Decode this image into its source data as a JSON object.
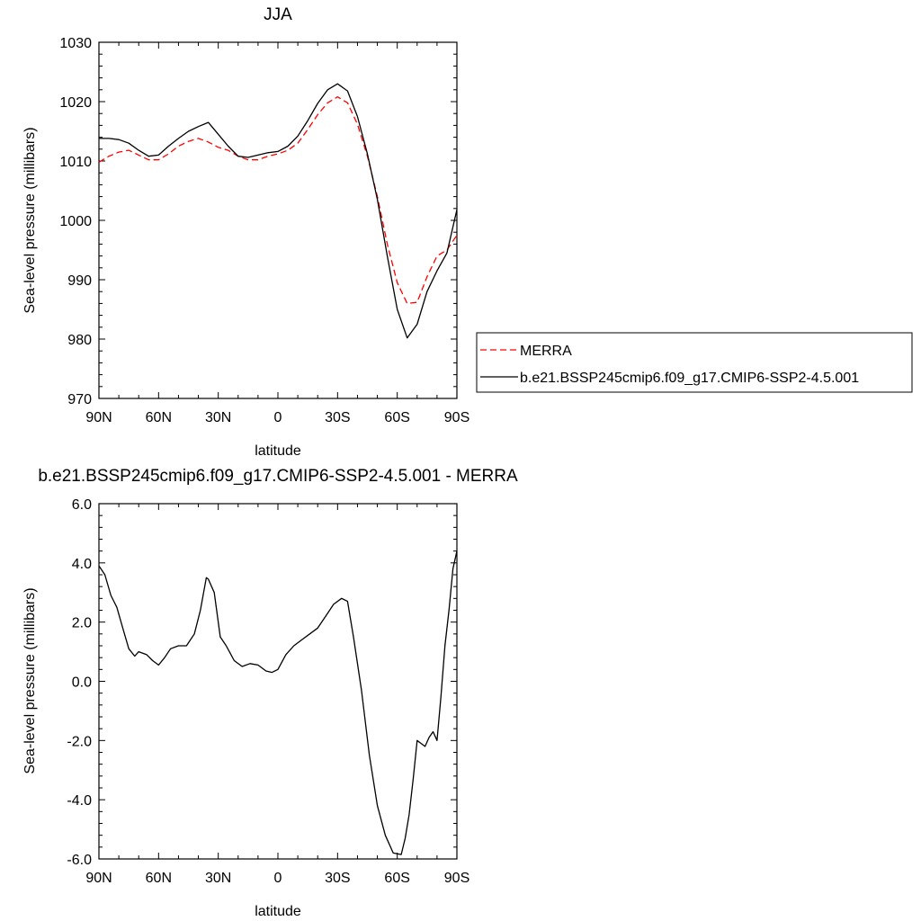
{
  "chart_data": [
    {
      "type": "line",
      "title": "JJA",
      "xlabel": "latitude",
      "ylabel": "Sea-level pressure (millibars)",
      "x_tick_labels": [
        "90N",
        "60N",
        "30N",
        "0",
        "30S",
        "60S",
        "90S"
      ],
      "x_tick_values": [
        90,
        60,
        30,
        0,
        -30,
        -60,
        -90
      ],
      "xlim": [
        90,
        -90
      ],
      "y_tick_labels": [
        "970",
        "980",
        "990",
        "1000",
        "1010",
        "1020",
        "1030"
      ],
      "y_tick_values": [
        970,
        980,
        990,
        1000,
        1010,
        1020,
        1030
      ],
      "ylim": [
        970,
        1030
      ],
      "legend_position": "right",
      "series": [
        {
          "name": "MERRA",
          "color": "#ff0000",
          "dash": "dashed",
          "x": [
            90,
            85,
            80,
            75,
            70,
            65,
            60,
            55,
            50,
            45,
            40,
            35,
            30,
            25,
            20,
            15,
            10,
            5,
            0,
            -5,
            -10,
            -15,
            -20,
            -25,
            -30,
            -35,
            -40,
            -45,
            -50,
            -55,
            -60,
            -65,
            -70,
            -75,
            -80,
            -85,
            -90
          ],
          "y": [
            1009.8,
            1010.8,
            1011.5,
            1011.8,
            1011.0,
            1010.2,
            1010.2,
            1011.2,
            1012.5,
            1013.3,
            1013.8,
            1013.2,
            1012.3,
            1011.8,
            1010.8,
            1010.2,
            1010.2,
            1010.8,
            1011.2,
            1011.8,
            1013.0,
            1015.3,
            1017.8,
            1019.8,
            1020.8,
            1019.8,
            1016.2,
            1010.8,
            1004.0,
            996.0,
            989.5,
            986.0,
            986.2,
            990.5,
            994.0,
            995.0,
            997.5
          ]
        },
        {
          "name": "b.e21.BSSP245cmip6.f09_g17.CMIP6-SSP2-4.5.001",
          "color": "#000000",
          "dash": "solid",
          "x": [
            90,
            85,
            80,
            75,
            70,
            65,
            60,
            55,
            50,
            45,
            40,
            35,
            30,
            25,
            20,
            15,
            10,
            5,
            0,
            -5,
            -10,
            -15,
            -20,
            -25,
            -30,
            -35,
            -40,
            -45,
            -50,
            -55,
            -60,
            -65,
            -70,
            -75,
            -80,
            -85,
            -90
          ],
          "y": [
            1013.8,
            1013.8,
            1013.6,
            1013.0,
            1011.8,
            1010.8,
            1011.0,
            1012.5,
            1013.8,
            1015.0,
            1015.8,
            1016.5,
            1014.5,
            1012.5,
            1010.8,
            1010.6,
            1011.0,
            1011.4,
            1011.6,
            1012.5,
            1014.2,
            1016.8,
            1019.7,
            1022.0,
            1023.0,
            1021.8,
            1017.5,
            1011.2,
            1003.5,
            994.0,
            985.0,
            980.2,
            982.5,
            988.0,
            991.5,
            994.5,
            1001.8
          ]
        }
      ]
    },
    {
      "type": "line",
      "title": "b.e21.BSSP245cmip6.f09_g17.CMIP6-SSP2-4.5.001 - MERRA",
      "xlabel": "latitude",
      "ylabel": "Sea-level pressure (millibars)",
      "x_tick_labels": [
        "90N",
        "60N",
        "30N",
        "0",
        "30S",
        "60S",
        "90S"
      ],
      "x_tick_values": [
        90,
        60,
        30,
        0,
        -30,
        -60,
        -90
      ],
      "xlim": [
        90,
        -90
      ],
      "y_tick_labels": [
        "-6.0",
        "-4.0",
        "-2.0",
        "0.0",
        "2.0",
        "4.0",
        "6.0"
      ],
      "y_tick_values": [
        -6,
        -4,
        -2,
        0,
        2,
        4,
        6
      ],
      "ylim": [
        -6,
        6
      ],
      "series": [
        {
          "color": "#000000",
          "dash": "solid",
          "x": [
            90,
            87,
            84,
            81,
            78,
            75,
            72,
            70,
            66,
            63,
            60,
            57,
            54,
            50,
            46,
            42,
            39,
            36,
            35,
            32,
            29,
            26,
            22,
            18,
            14,
            10,
            6,
            3,
            0,
            -4,
            -8,
            -12,
            -16,
            -20,
            -24,
            -28,
            -32,
            -35,
            -38,
            -42,
            -46,
            -50,
            -54,
            -58,
            -62,
            -64,
            -66,
            -68,
            -70,
            -72,
            -74,
            -76,
            -78,
            -80,
            -82,
            -84,
            -86,
            -88,
            -90
          ],
          "y": [
            3.9,
            3.6,
            2.9,
            2.5,
            1.8,
            1.1,
            0.85,
            1.0,
            0.9,
            0.7,
            0.55,
            0.8,
            1.1,
            1.2,
            1.2,
            1.6,
            2.4,
            3.5,
            3.45,
            3.0,
            1.5,
            1.2,
            0.7,
            0.5,
            0.6,
            0.55,
            0.35,
            0.3,
            0.4,
            0.9,
            1.2,
            1.4,
            1.6,
            1.8,
            2.2,
            2.6,
            2.8,
            2.7,
            1.5,
            -0.3,
            -2.5,
            -4.2,
            -5.2,
            -5.8,
            -5.85,
            -5.3,
            -4.5,
            -3.3,
            -2.0,
            -2.1,
            -2.2,
            -1.9,
            -1.7,
            -2.0,
            -0.5,
            1.2,
            2.4,
            3.8,
            4.4
          ]
        }
      ]
    }
  ]
}
